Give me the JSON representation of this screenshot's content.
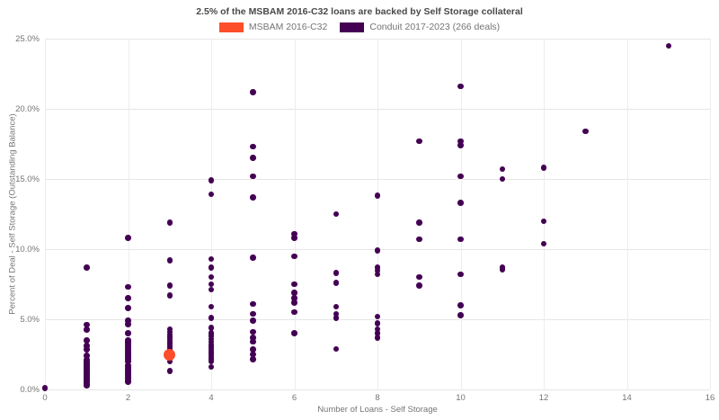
{
  "chart_data": {
    "type": "scatter",
    "title": "2.5% of the MSBAM 2016-C32 loans are backed by Self Storage collateral",
    "xlabel": "Number of Loans - Self Storage",
    "ylabel": "Percent of Deal - Self Storage (Outstanding Balance)",
    "xlim": [
      0,
      16
    ],
    "ylim": [
      0,
      25
    ],
    "grid": true,
    "legend_position": "top-center",
    "grid_color": "#e6e6e6",
    "tick_text_color": "#757575",
    "title_color": "#4a4a4a",
    "x_ticks": {
      "values": [
        0,
        2,
        4,
        6,
        8,
        10,
        12,
        14,
        16
      ],
      "labels": [
        "0",
        "2",
        "4",
        "6",
        "8",
        "10",
        "12",
        "14",
        "16"
      ]
    },
    "y_ticks": {
      "values": [
        0,
        5,
        10,
        15,
        20,
        25
      ],
      "labels": [
        "0.0%",
        "5.0%",
        "10.0%",
        "15.0%",
        "20.0%",
        "25.0%"
      ]
    },
    "series": [
      {
        "name": "MSBAM 2016-C32",
        "color": "#FC4E2A",
        "marker_diameter": 13,
        "points": [
          [
            3,
            2.5
          ]
        ]
      },
      {
        "name": "Conduit 2017-2023 (266 deals)",
        "color": "#440154",
        "marker_diameter": 6.5,
        "points": [
          [
            0,
            0.1
          ],
          [
            1,
            8.7
          ],
          [
            1,
            4.6
          ],
          [
            1,
            4.25
          ],
          [
            1,
            3.5
          ],
          [
            1,
            3.1
          ],
          [
            1,
            2.85
          ],
          [
            1,
            2.4
          ],
          [
            1,
            2.1
          ],
          [
            1,
            2.0
          ],
          [
            1,
            1.9
          ],
          [
            1,
            1.8
          ],
          [
            1,
            1.7
          ],
          [
            1,
            1.6
          ],
          [
            1,
            1.5
          ],
          [
            1,
            1.4
          ],
          [
            1,
            1.3
          ],
          [
            1,
            1.2
          ],
          [
            1,
            1.1
          ],
          [
            1,
            1.0
          ],
          [
            1,
            0.9
          ],
          [
            1,
            0.8
          ],
          [
            1,
            0.7
          ],
          [
            1,
            0.6
          ],
          [
            1,
            0.5
          ],
          [
            1,
            0.4
          ],
          [
            1,
            0.3
          ],
          [
            2,
            10.8
          ],
          [
            2,
            7.3
          ],
          [
            2,
            6.5
          ],
          [
            2,
            5.8
          ],
          [
            2,
            4.9
          ],
          [
            2,
            4.65
          ],
          [
            2,
            4.0
          ],
          [
            2,
            3.5
          ],
          [
            2,
            3.35
          ],
          [
            2,
            3.2
          ],
          [
            2,
            3.05
          ],
          [
            2,
            2.9
          ],
          [
            2,
            2.75
          ],
          [
            2,
            2.6
          ],
          [
            2,
            2.45
          ],
          [
            2,
            2.3
          ],
          [
            2,
            2.15
          ],
          [
            2,
            2.0
          ],
          [
            2,
            1.7
          ],
          [
            2,
            1.55
          ],
          [
            2,
            1.4
          ],
          [
            2,
            1.25
          ],
          [
            2,
            1.1
          ],
          [
            2,
            0.95
          ],
          [
            2,
            0.8
          ],
          [
            2,
            0.65
          ],
          [
            2,
            0.55
          ],
          [
            3,
            11.9
          ],
          [
            3,
            9.2
          ],
          [
            3,
            7.4
          ],
          [
            3,
            6.7
          ],
          [
            3,
            4.3
          ],
          [
            3,
            4.1
          ],
          [
            3,
            3.9
          ],
          [
            3,
            3.75
          ],
          [
            3,
            3.6
          ],
          [
            3,
            3.45
          ],
          [
            3,
            3.3
          ],
          [
            3,
            3.15
          ],
          [
            3,
            3.0
          ],
          [
            3,
            2.9
          ],
          [
            3,
            2.0
          ],
          [
            3,
            1.3
          ],
          [
            4,
            14.9
          ],
          [
            4,
            13.9
          ],
          [
            4,
            9.3
          ],
          [
            4,
            8.7
          ],
          [
            4,
            8.0
          ],
          [
            4,
            7.5
          ],
          [
            4,
            7.1
          ],
          [
            4,
            5.9
          ],
          [
            4,
            5.1
          ],
          [
            4,
            4.4
          ],
          [
            4,
            4.0
          ],
          [
            4,
            3.8
          ],
          [
            4,
            3.6
          ],
          [
            4,
            3.4
          ],
          [
            4,
            3.2
          ],
          [
            4,
            3.05
          ],
          [
            4,
            2.9
          ],
          [
            4,
            2.75
          ],
          [
            4,
            2.6
          ],
          [
            4,
            2.45
          ],
          [
            4,
            2.3
          ],
          [
            4,
            2.15
          ],
          [
            4,
            2.0
          ],
          [
            4,
            1.6
          ],
          [
            5,
            21.2
          ],
          [
            5,
            17.3
          ],
          [
            5,
            16.5
          ],
          [
            5,
            15.2
          ],
          [
            5,
            13.7
          ],
          [
            5,
            9.4
          ],
          [
            5,
            6.1
          ],
          [
            5,
            5.4
          ],
          [
            5,
            4.9
          ],
          [
            5,
            4.1
          ],
          [
            5,
            3.7
          ],
          [
            5,
            3.4
          ],
          [
            5,
            2.85
          ],
          [
            5,
            2.5
          ],
          [
            5,
            2.15
          ],
          [
            6,
            11.1
          ],
          [
            6,
            10.8
          ],
          [
            6,
            9.5
          ],
          [
            6,
            7.5
          ],
          [
            6,
            6.9
          ],
          [
            6,
            6.5
          ],
          [
            6,
            6.2
          ],
          [
            6,
            5.5
          ],
          [
            6,
            4.0
          ],
          [
            7,
            12.5
          ],
          [
            7,
            8.3
          ],
          [
            7,
            7.6
          ],
          [
            7,
            5.9
          ],
          [
            7,
            5.4
          ],
          [
            7,
            5.1
          ],
          [
            7,
            2.9
          ],
          [
            8,
            13.8
          ],
          [
            8,
            9.9
          ],
          [
            8,
            8.7
          ],
          [
            8,
            8.45
          ],
          [
            8,
            8.2
          ],
          [
            8,
            5.2
          ],
          [
            8,
            4.7
          ],
          [
            8,
            4.3
          ],
          [
            8,
            4.0
          ],
          [
            8,
            3.7
          ],
          [
            9,
            17.7
          ],
          [
            9,
            11.9
          ],
          [
            9,
            10.7
          ],
          [
            9,
            8.0
          ],
          [
            9,
            7.4
          ],
          [
            10,
            21.6
          ],
          [
            10,
            17.7
          ],
          [
            10,
            17.4
          ],
          [
            10,
            15.2
          ],
          [
            10,
            13.3
          ],
          [
            10,
            10.7
          ],
          [
            10,
            8.2
          ],
          [
            10,
            6.0
          ],
          [
            10,
            5.3
          ],
          [
            11,
            15.7
          ],
          [
            11,
            15.0
          ],
          [
            11,
            8.7
          ],
          [
            11,
            8.55
          ],
          [
            12,
            15.8
          ],
          [
            12,
            12.0
          ],
          [
            12,
            10.4
          ],
          [
            13,
            18.4
          ],
          [
            15,
            24.5
          ]
        ]
      }
    ]
  }
}
